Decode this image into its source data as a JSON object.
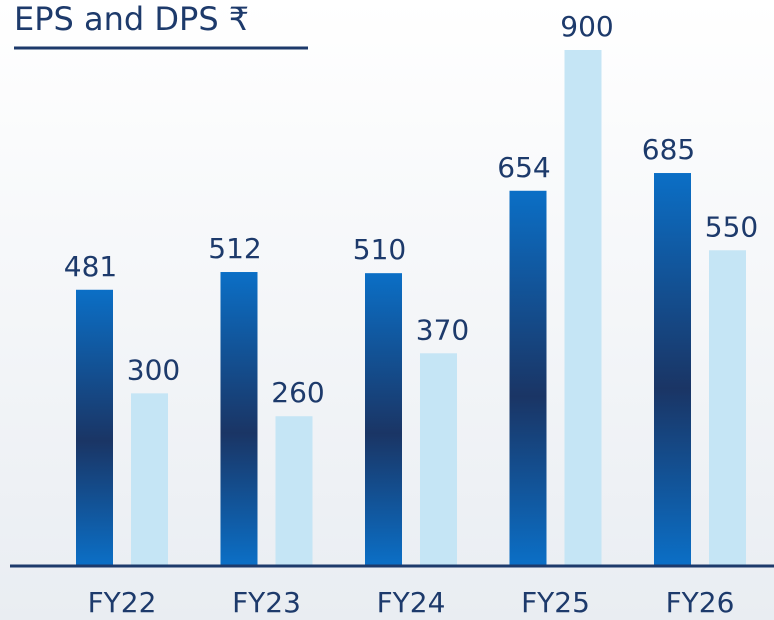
{
  "chart_data": {
    "type": "bar",
    "title": "EPS and DPS ₹",
    "categories": [
      "FY22",
      "FY23",
      "FY24",
      "FY25",
      "FY26"
    ],
    "series": [
      {
        "color": "#0b6fc6",
        "values": [
          481,
          512,
          510,
          654,
          685
        ]
      },
      {
        "color": "#c5e5f5",
        "values": [
          300,
          260,
          370,
          900,
          550
        ]
      }
    ]
  }
}
